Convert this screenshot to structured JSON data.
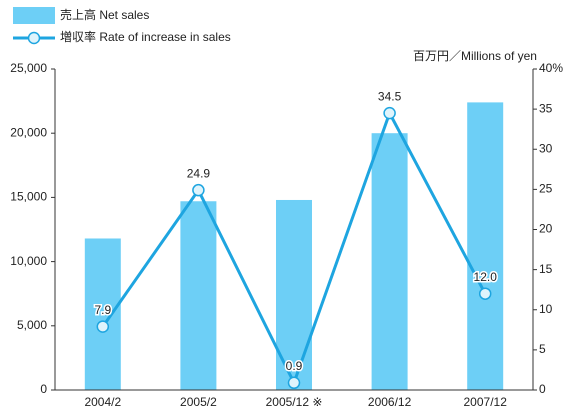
{
  "chart_data": {
    "type": "bar",
    "categories": [
      "2004/2",
      "2005/2",
      "2005/12 ※",
      "2006/12",
      "2007/12"
    ],
    "series": [
      {
        "name": "売上高 Net sales",
        "type": "bar",
        "color": "#6dcff6",
        "values": [
          11800,
          14700,
          14800,
          20000,
          22400
        ]
      },
      {
        "name": "増収率 Rate of increase in sales",
        "type": "line",
        "axis": "y2",
        "color": "#1ea5e0",
        "values": [
          7.9,
          24.9,
          0.9,
          34.5,
          12.0
        ],
        "value_labels": [
          "7.9",
          "24.9",
          "0.9",
          "34.5",
          "12.0"
        ]
      }
    ],
    "unit_label": "百万円／Millions of yen",
    "ylim": [
      0,
      25000
    ],
    "yticks": [
      0,
      {
        "value": 5000,
        "label": "5,000"
      },
      {
        "value": 10000,
        "label": "10,000"
      },
      {
        "value": 15000,
        "label": "15,000"
      },
      {
        "value": 20000,
        "label": "20,000"
      },
      {
        "value": 25000,
        "label": "25,000"
      }
    ],
    "y2lim": [
      0,
      40
    ],
    "y2ticks": [
      0,
      5,
      10,
      15,
      20,
      25,
      30,
      35,
      {
        "value": 40,
        "label": "40%"
      }
    ],
    "grid": false
  }
}
